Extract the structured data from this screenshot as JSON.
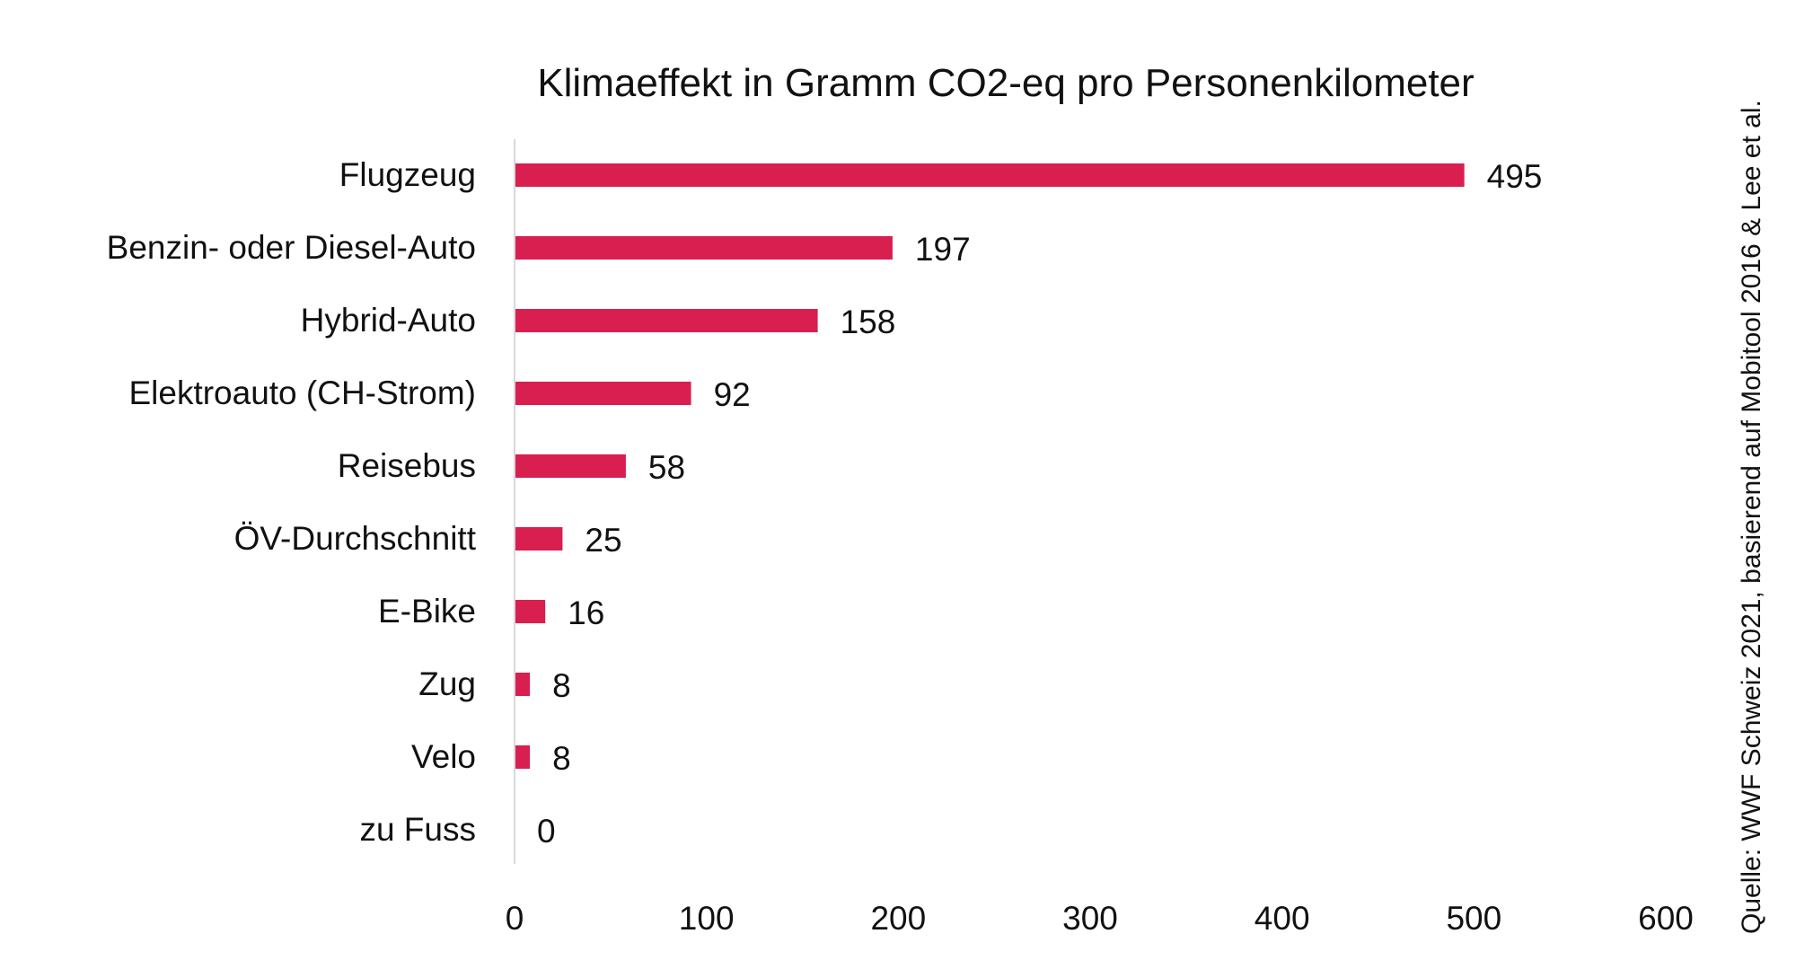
{
  "chart_data": {
    "type": "bar",
    "orientation": "horizontal",
    "title": "Klimaeffekt in Gramm CO2-eq pro Personenkilometer",
    "source": "Quelle: WWF Schweiz 2021, basierend auf Mobitool 2016 & Lee et al.",
    "categories": [
      "Flugzeug",
      "Benzin- oder Diesel-Auto",
      "Hybrid-Auto",
      "Elektroauto (CH-Strom)",
      "Reisebus",
      "ÖV-Durchschnitt",
      "E-Bike",
      "Zug",
      "Velo",
      "zu Fuss"
    ],
    "values": [
      495,
      197,
      158,
      92,
      58,
      25,
      16,
      8,
      8,
      0
    ],
    "value_labels": [
      "495",
      "197",
      "158",
      "92",
      "58",
      "25",
      "16",
      "8",
      "8",
      "0"
    ],
    "xlim": [
      0,
      600
    ],
    "x_ticks": [
      0,
      100,
      200,
      300,
      400,
      500,
      600
    ],
    "x_tick_labels": [
      "0",
      "100",
      "200",
      "300",
      "400",
      "500",
      "600"
    ],
    "grid": false,
    "legend": "none",
    "colors": {
      "bar": "#D81F4F",
      "axis": "#D9D9D9",
      "text": "#111111"
    }
  }
}
